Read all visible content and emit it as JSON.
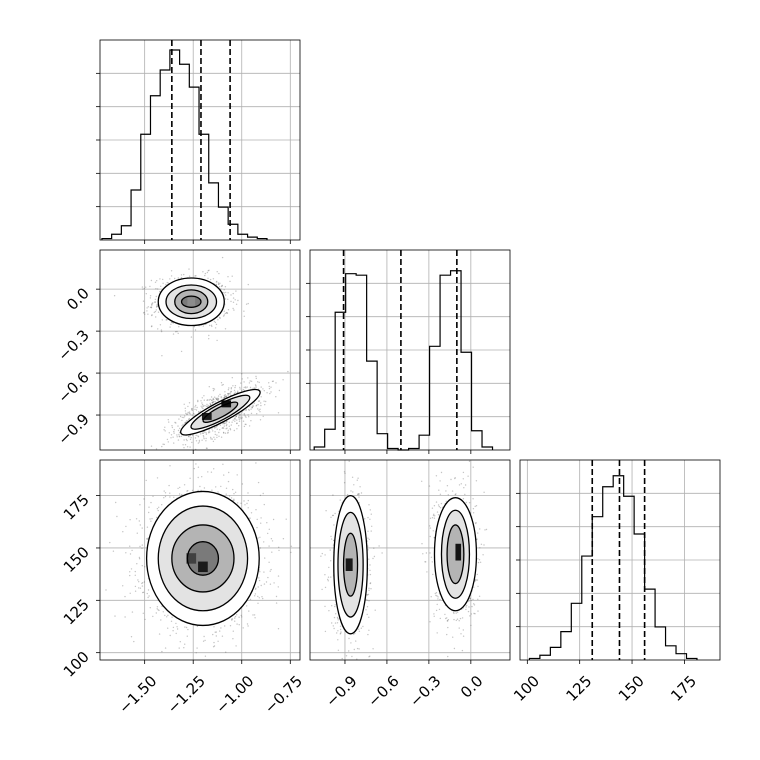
{
  "chart_data": {
    "type": "corner",
    "params": [
      {
        "id": "p1",
        "range": [
          -1.73,
          -0.7
        ],
        "ticks": [
          -1.5,
          -1.25,
          -1.0,
          -0.75
        ],
        "tick_labels": [
          "−1.50",
          "−1.25",
          "−1.00",
          "−0.75"
        ],
        "quantiles": [
          -1.36,
          -1.21,
          -1.06
        ],
        "hist": {
          "edges_start": -1.72,
          "bin_width": 0.05,
          "counts": [
            1,
            4,
            10,
            35,
            74,
            101,
            119,
            133,
            123,
            107,
            74,
            40,
            23,
            11,
            4,
            2,
            1
          ],
          "max": 140
        }
      },
      {
        "id": "p2",
        "range": [
          -1.15,
          0.28
        ],
        "ticks": [
          -0.9,
          -0.6,
          -0.3,
          0.0
        ],
        "tick_labels": [
          "−0.9",
          "−0.6",
          "−0.3",
          "0.0"
        ],
        "quantiles": [
          -0.91,
          -0.5,
          -0.1
        ],
        "hist": {
          "edges_start": -1.12,
          "bin_width": 0.075,
          "counts": [
            2,
            14,
            93,
            119,
            118,
            60,
            11,
            1,
            0,
            1,
            10,
            70,
            118,
            121,
            66,
            13,
            2
          ],
          "max": 135
        }
      },
      {
        "id": "p3",
        "range": [
          96.5,
          192
        ],
        "ticks": [
          100,
          125,
          150,
          175
        ],
        "tick_labels": [
          "100",
          "125",
          "150",
          "175"
        ],
        "quantiles": [
          131,
          144,
          156
        ],
        "hist": {
          "edges_start": 101,
          "bin_width": 5,
          "counts": [
            1,
            3,
            8,
            18,
            36,
            66,
            91,
            110,
            117,
            104,
            80,
            45,
            21,
            9,
            4,
            1
          ],
          "max": 127
        }
      }
    ],
    "pairs": [
      {
        "x": "p1",
        "y": "p2",
        "blobs": [
          {
            "cx": -1.26,
            "cy": -0.09,
            "sx": 0.085,
            "sy": 0.08,
            "angle": 0,
            "n": 900,
            "levels": [
              {
                "rx": 0.17,
                "ry": 0.17
              },
              {
                "rx": 0.13,
                "ry": 0.12
              },
              {
                "rx": 0.085,
                "ry": 0.085
              },
              {
                "rx": 0.05,
                "ry": 0.04
              }
            ],
            "cells": [
              {
                "x": -1.26,
                "y": -0.09,
                "w": 0.04,
                "h": 0.06,
                "shade": 0.55
              }
            ]
          },
          {
            "cx": -1.11,
            "cy": -0.88,
            "sx": 0.11,
            "sy": 0.06,
            "angle": 28,
            "n": 1000,
            "levels": [
              {
                "rx": 0.23,
                "ry": 0.07
              },
              {
                "rx": 0.17,
                "ry": 0.055
              },
              {
                "rx": 0.1,
                "ry": 0.035
              }
            ],
            "cells": [
              {
                "x": -1.08,
                "y": -0.82,
                "w": 0.05,
                "h": 0.05,
                "shade": 0.05
              },
              {
                "x": -1.18,
                "y": -0.91,
                "w": 0.05,
                "h": 0.05,
                "shade": 0.1
              }
            ]
          }
        ]
      },
      {
        "x": "p1",
        "y": "p3",
        "blobs": [
          {
            "cx": -1.2,
            "cy": 145,
            "sx": 0.13,
            "sy": 14,
            "angle": 0,
            "n": 1800,
            "levels": [
              {
                "rx": 0.29,
                "ry": 32
              },
              {
                "rx": 0.23,
                "ry": 25
              },
              {
                "rx": 0.16,
                "ry": 16
              },
              {
                "rx": 0.08,
                "ry": 8
              }
            ],
            "cells": [
              {
                "x": -1.2,
                "y": 141,
                "w": 0.05,
                "h": 5,
                "shade": 0.1
              },
              {
                "x": -1.26,
                "y": 145,
                "w": 0.05,
                "h": 5,
                "shade": 0.25
              }
            ]
          }
        ]
      },
      {
        "x": "p2",
        "y": "p3",
        "blobs": [
          {
            "cx": -0.86,
            "cy": 142,
            "sx": 0.06,
            "sy": 14,
            "angle": 0,
            "n": 900,
            "levels": [
              {
                "rx": 0.12,
                "ry": 33
              },
              {
                "rx": 0.09,
                "ry": 25
              },
              {
                "rx": 0.05,
                "ry": 15
              }
            ],
            "cells": [
              {
                "x": -0.87,
                "y": 142,
                "w": 0.05,
                "h": 6,
                "shade": 0.1
              }
            ]
          },
          {
            "cx": -0.11,
            "cy": 147,
            "sx": 0.065,
            "sy": 14,
            "angle": 0,
            "n": 900,
            "levels": [
              {
                "rx": 0.15,
                "ry": 27
              },
              {
                "rx": 0.1,
                "ry": 21
              },
              {
                "rx": 0.06,
                "ry": 14
              }
            ],
            "cells": [
              {
                "x": -0.09,
                "y": 148,
                "w": 0.04,
                "h": 8,
                "shade": 0.08
              }
            ]
          }
        ]
      }
    ]
  }
}
